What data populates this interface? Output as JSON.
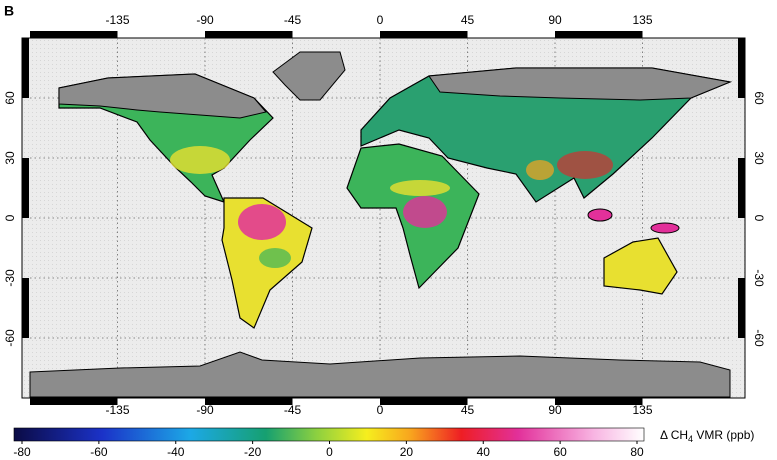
{
  "panel_label": "B",
  "map": {
    "lonlim": [
      -180,
      180
    ],
    "latlim": [
      -90,
      90
    ],
    "lon_ticks": [
      -135,
      -90,
      -45,
      0,
      45,
      90,
      135
    ],
    "lat_ticks": [
      60,
      30,
      0,
      -30,
      -60
    ]
  },
  "colorbar": {
    "lim": [
      -80,
      80
    ],
    "ticks": [
      -80,
      -60,
      -40,
      -20,
      0,
      20,
      40,
      60,
      80
    ],
    "label": {
      "prefix": "Δ CH",
      "subscript": "4",
      "suffix": " VMR (ppb)"
    }
  }
}
